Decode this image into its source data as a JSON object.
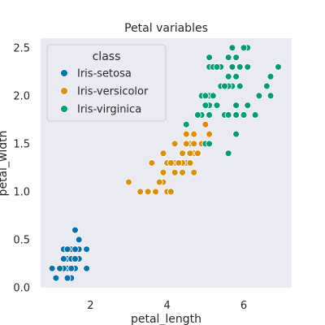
{
  "chart_data": {
    "type": "scatter",
    "title": "Petal variables",
    "xlabel": "petal_length",
    "ylabel": "petal_width",
    "xlim": [
      0.7,
      7.25
    ],
    "ylim": [
      0.0,
      2.6
    ],
    "xticks": [
      2,
      4,
      6
    ],
    "yticks": [
      0.0,
      0.5,
      1.0,
      1.5,
      2.0,
      2.5
    ],
    "xtick_labels": [
      "2",
      "4",
      "6"
    ],
    "ytick_labels": [
      "0.0",
      "0.5",
      "1.0",
      "1.5",
      "2.0",
      "2.5"
    ],
    "grid": false,
    "legend_title": "class",
    "legend_position": "top-left",
    "series": [
      {
        "name": "Iris-setosa",
        "color": "#0173b2",
        "points": [
          [
            1.4,
            0.2
          ],
          [
            1.3,
            0.2
          ],
          [
            1.5,
            0.2
          ],
          [
            1.7,
            0.4
          ],
          [
            1.4,
            0.3
          ],
          [
            1.5,
            0.1
          ],
          [
            1.6,
            0.2
          ],
          [
            1.4,
            0.1
          ],
          [
            1.1,
            0.1
          ],
          [
            1.2,
            0.2
          ],
          [
            1.3,
            0.4
          ],
          [
            1.7,
            0.3
          ],
          [
            1.5,
            0.4
          ],
          [
            1.0,
            0.2
          ],
          [
            1.7,
            0.5
          ],
          [
            1.9,
            0.2
          ],
          [
            1.6,
            0.4
          ],
          [
            1.5,
            0.3
          ],
          [
            1.6,
            0.6
          ],
          [
            1.9,
            0.4
          ],
          [
            1.4,
            0.4
          ],
          [
            1.2,
            0.2
          ],
          [
            1.3,
            0.3
          ],
          [
            1.6,
            0.3
          ],
          [
            1.5,
            0.2
          ]
        ]
      },
      {
        "name": "Iris-versicolor",
        "color": "#de8f05",
        "points": [
          [
            4.7,
            1.4
          ],
          [
            4.5,
            1.5
          ],
          [
            4.9,
            1.5
          ],
          [
            4.0,
            1.3
          ],
          [
            4.6,
            1.5
          ],
          [
            4.5,
            1.3
          ],
          [
            4.7,
            1.6
          ],
          [
            3.3,
            1.0
          ],
          [
            4.6,
            1.3
          ],
          [
            3.9,
            1.4
          ],
          [
            3.5,
            1.0
          ],
          [
            4.2,
            1.5
          ],
          [
            4.0,
            1.0
          ],
          [
            4.7,
            1.4
          ],
          [
            3.6,
            1.3
          ],
          [
            4.4,
            1.4
          ],
          [
            4.5,
            1.5
          ],
          [
            4.1,
            1.0
          ],
          [
            4.5,
            1.5
          ],
          [
            3.9,
            1.1
          ],
          [
            4.8,
            1.8
          ],
          [
            4.0,
            1.3
          ],
          [
            4.9,
            1.5
          ],
          [
            4.7,
            1.2
          ],
          [
            4.3,
            1.3
          ],
          [
            4.4,
            1.4
          ],
          [
            4.8,
            1.4
          ],
          [
            5.0,
            1.7
          ],
          [
            3.5,
            1.0
          ],
          [
            3.8,
            1.1
          ],
          [
            3.7,
            1.0
          ],
          [
            3.9,
            1.2
          ],
          [
            5.1,
            1.6
          ],
          [
            4.5,
            1.6
          ],
          [
            4.7,
            1.5
          ],
          [
            4.4,
            1.3
          ],
          [
            4.1,
            1.3
          ],
          [
            4.0,
            1.3
          ],
          [
            4.4,
            1.2
          ],
          [
            4.6,
            1.4
          ],
          [
            3.0,
            1.1
          ],
          [
            4.2,
            1.3
          ],
          [
            4.2,
            1.2
          ],
          [
            4.3,
            1.3
          ],
          [
            4.1,
            1.3
          ],
          [
            4.5,
            1.5
          ],
          [
            4.6,
            1.4
          ],
          [
            4.1,
            1.0
          ]
        ]
      },
      {
        "name": "Iris-virginica",
        "color": "#029e73",
        "points": [
          [
            6.0,
            2.5
          ],
          [
            5.1,
            1.9
          ],
          [
            5.9,
            2.1
          ],
          [
            5.6,
            1.8
          ],
          [
            5.8,
            2.2
          ],
          [
            6.6,
            2.1
          ],
          [
            4.5,
            1.7
          ],
          [
            6.3,
            1.8
          ],
          [
            5.8,
            1.8
          ],
          [
            6.1,
            2.5
          ],
          [
            5.1,
            2.0
          ],
          [
            5.3,
            1.9
          ],
          [
            5.5,
            2.1
          ],
          [
            5.0,
            2.0
          ],
          [
            5.1,
            2.4
          ],
          [
            5.3,
            2.3
          ],
          [
            5.5,
            1.8
          ],
          [
            6.7,
            2.2
          ],
          [
            6.9,
            2.3
          ],
          [
            5.0,
            1.5
          ],
          [
            5.7,
            2.3
          ],
          [
            4.9,
            2.0
          ],
          [
            6.7,
            2.0
          ],
          [
            4.9,
            1.8
          ],
          [
            5.7,
            2.1
          ],
          [
            6.0,
            1.8
          ],
          [
            4.8,
            1.8
          ],
          [
            4.9,
            1.8
          ],
          [
            5.6,
            2.1
          ],
          [
            5.8,
            1.6
          ],
          [
            6.1,
            1.9
          ],
          [
            6.4,
            2.0
          ],
          [
            5.6,
            2.2
          ],
          [
            5.1,
            1.5
          ],
          [
            5.6,
            1.4
          ],
          [
            6.1,
            2.3
          ],
          [
            5.6,
            2.4
          ],
          [
            5.5,
            1.8
          ],
          [
            5.4,
            2.1
          ],
          [
            5.6,
            2.4
          ],
          [
            5.1,
            2.3
          ],
          [
            5.9,
            2.3
          ],
          [
            5.7,
            2.5
          ],
          [
            5.2,
            2.3
          ],
          [
            5.0,
            1.9
          ],
          [
            5.2,
            2.0
          ],
          [
            5.4,
            2.3
          ],
          [
            5.1,
            1.8
          ],
          [
            5.8,
            2.4
          ],
          [
            5.0,
            2.0
          ],
          [
            6.0,
            2.5
          ],
          [
            5.7,
            2.3
          ],
          [
            5.3,
            2.3
          ],
          [
            5.5,
            2.1
          ],
          [
            5.1,
            2.4
          ],
          [
            4.8,
            1.8
          ],
          [
            5.6,
            1.8
          ],
          [
            5.8,
            1.9
          ]
        ]
      }
    ]
  }
}
